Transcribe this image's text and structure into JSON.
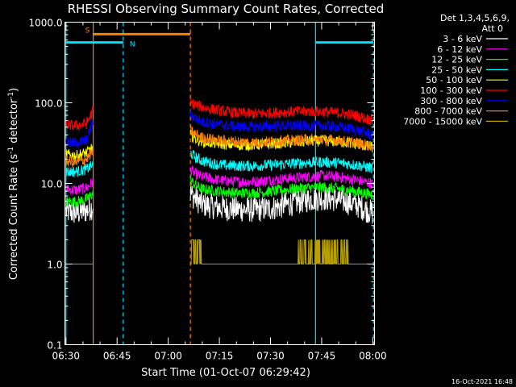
{
  "chart_data": {
    "type": "line",
    "title": "RHESSI Observing Summary Count Rates, Corrected",
    "xlabel": "Start Time (01-Oct-07 06:29:42)",
    "ylabel_main": "Corrected Count Rate (s",
    "ylabel_sup1": "-1",
    "ylabel_mid": " detector",
    "ylabel_sup2": "-1",
    "ylabel_end": ")",
    "footer": "16-Oct-2021 16:48",
    "legend_header": [
      "Det 1,3,4,5,6,9,",
      "Att 0"
    ],
    "x_unit": "minutes after 06:30 UT",
    "xlim": [
      -0.3,
      90.5
    ],
    "ylim": [
      0.1,
      1000
    ],
    "yscale": "log",
    "x_ticks": [
      {
        "value": 0,
        "label": "06:30"
      },
      {
        "value": 15,
        "label": "06:45"
      },
      {
        "value": 30,
        "label": "07:00"
      },
      {
        "value": 45,
        "label": "07:15"
      },
      {
        "value": 60,
        "label": "07:30"
      },
      {
        "value": 75,
        "label": "07:45"
      },
      {
        "value": 90,
        "label": "08:00"
      }
    ],
    "y_ticks": [
      {
        "value": 0.1,
        "label": "0.1"
      },
      {
        "value": 1,
        "label": "1.0"
      },
      {
        "value": 10,
        "label": "10.0"
      },
      {
        "value": 100,
        "label": "100.0"
      },
      {
        "value": 1000,
        "label": "1000.0"
      }
    ],
    "data_gap": [
      8.0,
      36.5
    ],
    "vertical_lines": [
      {
        "x": 0.0,
        "color": "#00e0ff",
        "dashed": false
      },
      {
        "x": 8.0,
        "color": "#ff8000",
        "dashed": false
      },
      {
        "x": 16.8,
        "color": "#00e0ff",
        "dashed": true
      },
      {
        "x": 36.5,
        "color": "#ff8000",
        "dashed": true
      },
      {
        "x": 73.2,
        "color": "#00e0ff",
        "dashed": false
      },
      {
        "x": 90.2,
        "color": "#00e0ff",
        "dashed": true
      }
    ],
    "flag_bars": [
      {
        "label": "S",
        "x_start": 8.0,
        "x_end": 36.5,
        "y": 710,
        "color": "#ff8000"
      },
      {
        "label": "N",
        "x_start": -0.3,
        "x_end": 16.8,
        "y": 560,
        "color": "#00e0ff"
      },
      {
        "label": "",
        "x_start": 73.2,
        "x_end": 90.2,
        "y": 560,
        "color": "#00e0ff"
      }
    ],
    "series": [
      {
        "name": "3 - 6 keV",
        "color": "#ffffff",
        "points": [
          [
            0,
            4.5
          ],
          [
            3,
            4.3
          ],
          [
            6,
            4.6
          ],
          [
            8,
            5.2
          ],
          [
            36.5,
            7.5
          ],
          [
            38,
            6.5
          ],
          [
            40,
            5.5
          ],
          [
            45,
            5.0
          ],
          [
            50,
            4.8
          ],
          [
            55,
            4.7
          ],
          [
            60,
            4.9
          ],
          [
            65,
            5.5
          ],
          [
            70,
            6.2
          ],
          [
            75,
            6.6
          ],
          [
            80,
            6.3
          ],
          [
            85,
            5.5
          ],
          [
            90,
            4.3
          ]
        ]
      },
      {
        "name": "6 - 12 keV",
        "color": "#ff00ff",
        "points": [
          [
            0,
            8.5
          ],
          [
            3,
            8.3
          ],
          [
            6,
            8.8
          ],
          [
            8,
            10.5
          ],
          [
            36.5,
            15
          ],
          [
            38,
            13
          ],
          [
            40,
            12
          ],
          [
            45,
            11
          ],
          [
            50,
            10.5
          ],
          [
            55,
            10.5
          ],
          [
            60,
            11
          ],
          [
            65,
            11.5
          ],
          [
            70,
            12
          ],
          [
            75,
            12.5
          ],
          [
            80,
            12
          ],
          [
            85,
            11
          ],
          [
            90,
            10
          ]
        ]
      },
      {
        "name": "12 - 25 keV",
        "color": "#00ff00",
        "points": [
          [
            0,
            6.0
          ],
          [
            3,
            5.9
          ],
          [
            6,
            6.4
          ],
          [
            8,
            7.5
          ],
          [
            36.5,
            11
          ],
          [
            38,
            9.5
          ],
          [
            40,
            8.5
          ],
          [
            45,
            8.0
          ],
          [
            50,
            7.6
          ],
          [
            55,
            7.6
          ],
          [
            60,
            8.0
          ],
          [
            65,
            8.4
          ],
          [
            70,
            8.8
          ],
          [
            75,
            9.0
          ],
          [
            80,
            8.6
          ],
          [
            85,
            8.0
          ],
          [
            90,
            7.2
          ]
        ]
      },
      {
        "name": "25 - 50 keV",
        "color": "#00ffff",
        "points": [
          [
            0,
            14
          ],
          [
            3,
            14
          ],
          [
            6,
            15
          ],
          [
            8,
            17
          ],
          [
            36.5,
            24
          ],
          [
            38,
            21
          ],
          [
            40,
            19
          ],
          [
            45,
            17
          ],
          [
            50,
            16.5
          ],
          [
            55,
            16.5
          ],
          [
            60,
            17
          ],
          [
            65,
            17.5
          ],
          [
            70,
            18
          ],
          [
            75,
            18.5
          ],
          [
            80,
            18
          ],
          [
            85,
            17
          ],
          [
            90,
            15.5
          ]
        ]
      },
      {
        "name": "50 - 100 keV",
        "color": "#ffff00",
        "points": [
          [
            0,
            23
          ],
          [
            3,
            22
          ],
          [
            6,
            24
          ],
          [
            8,
            28
          ],
          [
            36.5,
            40
          ],
          [
            38,
            36
          ],
          [
            40,
            33
          ],
          [
            45,
            31
          ],
          [
            50,
            30
          ],
          [
            55,
            30
          ],
          [
            60,
            31
          ],
          [
            65,
            32
          ],
          [
            70,
            33
          ],
          [
            75,
            34
          ],
          [
            80,
            33
          ],
          [
            85,
            31
          ],
          [
            90,
            28
          ]
        ]
      },
      {
        "name": "100 - 300 keV",
        "color": "#ff0000",
        "points": [
          [
            0,
            53
          ],
          [
            3,
            52
          ],
          [
            6,
            55
          ],
          [
            8,
            80
          ],
          [
            36.5,
            100
          ],
          [
            38,
            95
          ],
          [
            40,
            88
          ],
          [
            45,
            80
          ],
          [
            50,
            75
          ],
          [
            55,
            73
          ],
          [
            60,
            75
          ],
          [
            65,
            77
          ],
          [
            70,
            78
          ],
          [
            75,
            78
          ],
          [
            80,
            75
          ],
          [
            85,
            70
          ],
          [
            90,
            60
          ]
        ]
      },
      {
        "name": "300 - 800 keV",
        "color": "#0000ff",
        "points": [
          [
            0,
            33
          ],
          [
            3,
            32
          ],
          [
            6,
            34
          ],
          [
            8,
            60
          ],
          [
            36.5,
            70
          ],
          [
            38,
            65
          ],
          [
            40,
            58
          ],
          [
            45,
            54
          ],
          [
            50,
            51
          ],
          [
            55,
            50
          ],
          [
            60,
            51
          ],
          [
            65,
            52
          ],
          [
            70,
            52
          ],
          [
            75,
            52
          ],
          [
            80,
            50
          ],
          [
            85,
            46
          ],
          [
            90,
            40
          ]
        ]
      },
      {
        "name": "800 - 7000 keV",
        "color": "#ff8000",
        "points": [
          [
            0,
            19
          ],
          [
            3,
            18
          ],
          [
            6,
            20
          ],
          [
            8,
            25
          ],
          [
            36.5,
            45
          ],
          [
            38,
            41
          ],
          [
            40,
            37
          ],
          [
            45,
            34
          ],
          [
            50,
            33
          ],
          [
            55,
            32
          ],
          [
            60,
            33
          ],
          [
            65,
            34
          ],
          [
            70,
            35
          ],
          [
            75,
            35
          ],
          [
            80,
            34
          ],
          [
            85,
            32
          ],
          [
            90,
            29
          ]
        ]
      },
      {
        "name": "7000 - 15000 keV",
        "color": "#b8a000",
        "points": [
          [
            0,
            1
          ],
          [
            7,
            1
          ],
          [
            8,
            1
          ],
          [
            36.5,
            1
          ],
          [
            90,
            1
          ]
        ]
      }
    ]
  }
}
